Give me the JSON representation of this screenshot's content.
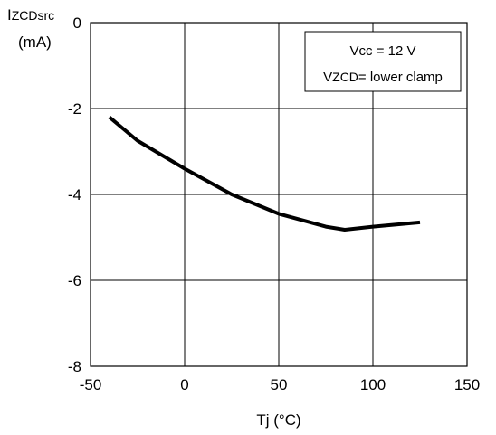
{
  "chart_data": {
    "type": "line",
    "xlabel": "Tj  (°C)",
    "ylabel": {
      "main": "I",
      "sub": "ZCDsrc",
      "unit": "(mA)"
    },
    "xlim": [
      -50,
      150
    ],
    "ylim": [
      -8,
      0
    ],
    "x_ticks": [
      -50,
      0,
      50,
      100,
      150
    ],
    "y_ticks": [
      0,
      -2,
      -4,
      -6,
      -8
    ],
    "x_tick_labels": [
      "-50",
      "0",
      "50",
      "100",
      "150"
    ],
    "y_tick_labels": [
      "0",
      "-2",
      "-4",
      "-6",
      "-8"
    ],
    "grid": true,
    "series": [
      {
        "color": "#000000",
        "x": [
          -40,
          -25,
          0,
          25,
          50,
          75,
          85,
          100,
          125
        ],
        "y": [
          -2.2,
          -2.75,
          -3.4,
          -4.0,
          -4.45,
          -4.75,
          -4.82,
          -4.75,
          -4.65
        ]
      }
    ],
    "annotation": {
      "line1": "Vcc = 12 V",
      "line2_main": "V",
      "line2_sub": "ZCD",
      "line2_rest": "= lower clamp"
    }
  }
}
